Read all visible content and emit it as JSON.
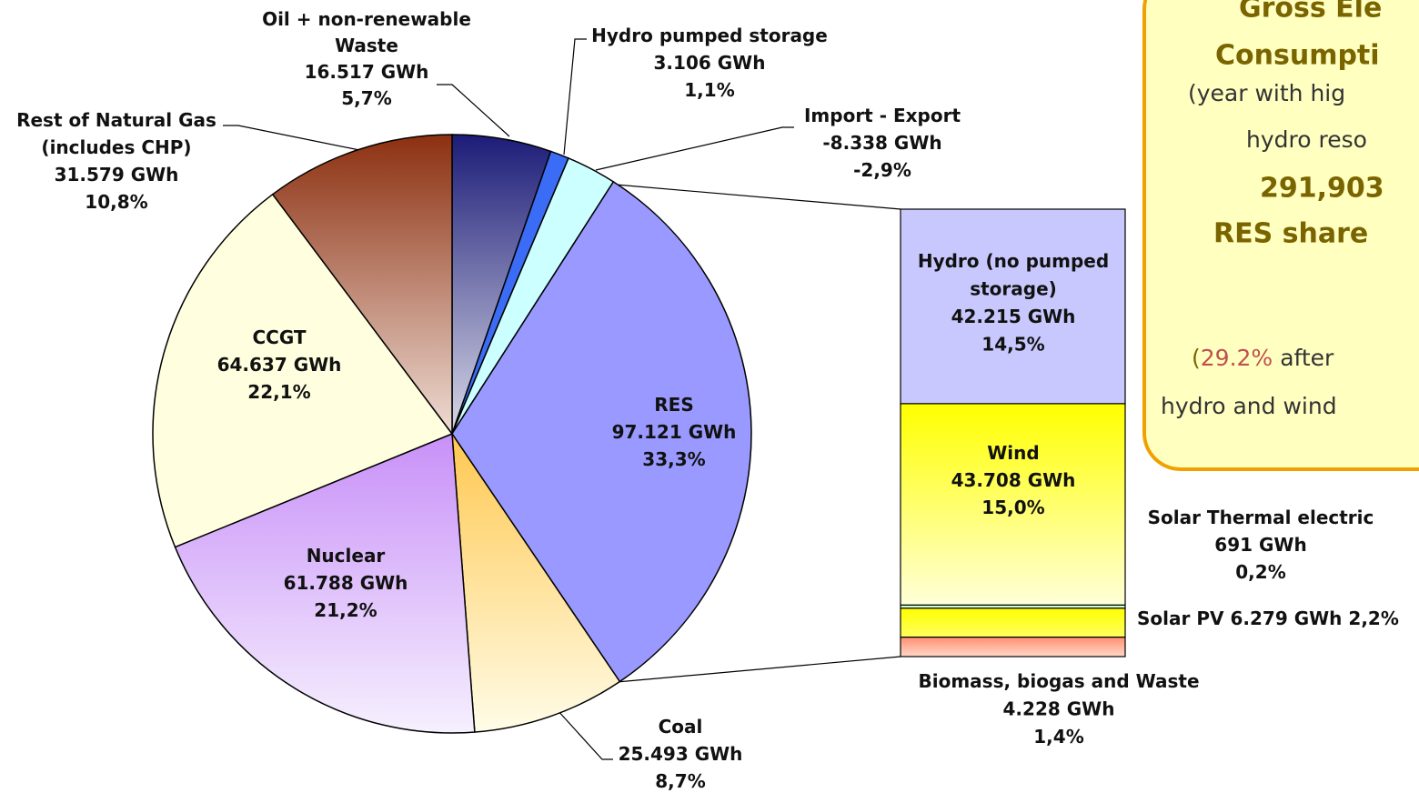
{
  "chart_data": {
    "type": "pie",
    "categories": [
      [
        "Oil + non-renewable",
        "Waste"
      ],
      [
        "Hydro pumped storage"
      ],
      [
        "Import - Export"
      ],
      [
        "RES"
      ],
      [
        "Coal"
      ],
      [
        "Nuclear"
      ],
      [
        "CCGT"
      ],
      [
        "Rest of Natural Gas",
        "(includes CHP)"
      ]
    ],
    "values": [
      16517,
      3106,
      -8338,
      97121,
      25493,
      61788,
      64637,
      31579
    ],
    "value_labels": [
      "16.517 GWh",
      "3.106 GWh",
      "-8.338 GWh",
      "97.121 GWh",
      "25.493 GWh",
      "61.788 GWh",
      "64.637 GWh",
      "31.579 GWh"
    ],
    "percents": [
      5.7,
      1.1,
      -2.9,
      33.3,
      8.7,
      21.2,
      22.1,
      10.8
    ],
    "percent_labels": [
      "5,7%",
      "1,1%",
      "-2,9%",
      "33,3%",
      "8,7%",
      "21,2%",
      "22,1%",
      "10,8%"
    ],
    "colors": [
      "#1c1c78",
      "#3b6cf5",
      "#ccffff",
      "#9999ff",
      "#ffc850",
      "#c890f8",
      "#ffffe0",
      "#8c3010"
    ],
    "fade_colors": [
      "#d8d8e8",
      "#3b6cf5",
      "#ccffff",
      "#9999ff",
      "#fffce8",
      "#f6f0fe",
      "#ffffe0",
      "#eedcd4"
    ],
    "breakdown": {
      "categories": [
        [
          "Hydro (no pumped",
          "storage)"
        ],
        [
          "Wind"
        ],
        [
          "Solar Thermal electric"
        ],
        [
          "Solar PV"
        ],
        [
          "Biomass, biogas and Waste"
        ]
      ],
      "values": [
        42215,
        43708,
        691,
        6279,
        4228
      ],
      "value_labels": [
        "42.215 GWh",
        "43.708 GWh",
        "691 GWh",
        "6.279 GWh",
        "4.228 GWh"
      ],
      "percents": [
        14.5,
        15.0,
        0.2,
        2.2,
        1.4
      ],
      "percent_labels": [
        "14,5%",
        "15,0%",
        "0,2%",
        "2,2%",
        "1,4%"
      ],
      "colors": [
        "#c8c8ff",
        "#ffff00",
        "#ccffcc",
        "#ffff00",
        "#ff9070"
      ],
      "fade_colors": [
        "#c8c8ff",
        "#ffffd8",
        "#ccffcc",
        "#ffff60",
        "#ffd8c8"
      ]
    },
    "note_box": {
      "lines": [
        "Gross Ele",
        "Consumpti",
        "(year with hig",
        "hydro reso",
        "291,903",
        "RES share"
      ],
      "note": [
        "(",
        "29.2%",
        "after"
      ],
      "note_end": "hydro and wind"
    }
  }
}
